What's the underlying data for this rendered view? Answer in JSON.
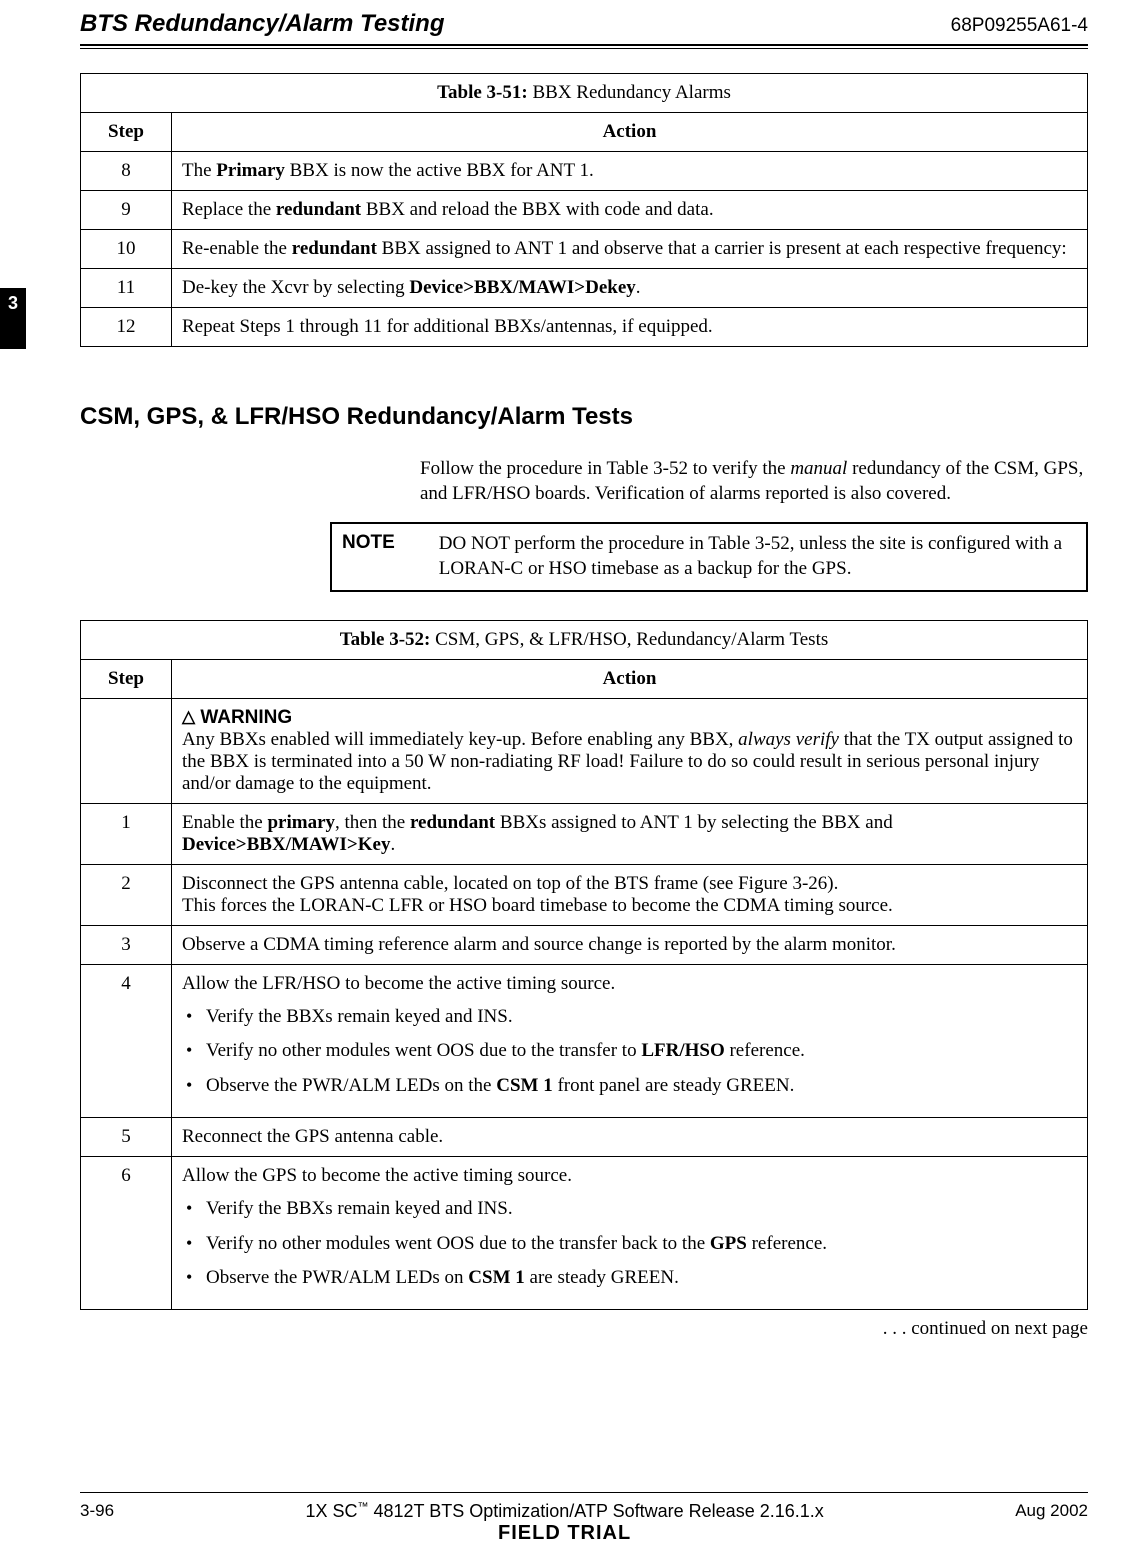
{
  "header": {
    "title": "BTS Redundancy/Alarm Testing",
    "docnum": "68P09255A61-4"
  },
  "sideTab": "3",
  "table1": {
    "caption_prefix": "Table 3-51:",
    "caption_rest": " BBX Redundancy Alarms",
    "col_step": "Step",
    "col_action": "Action",
    "rows": {
      "r8": {
        "step": "8",
        "a1": "The ",
        "b1": "Primary",
        "a2": " BBX is now the active BBX for ANT 1."
      },
      "r9": {
        "step": "9",
        "a1": "Replace the ",
        "b1": "redundant",
        "a2": " BBX and reload the BBX with code and data."
      },
      "r10": {
        "step": "10",
        "a1": "Re-enable the ",
        "b1": "redundant",
        "a2": " BBX assigned to ANT 1 and observe that a carrier is present at each respective frequency:"
      },
      "r11": {
        "step": "11",
        "a1": "De-key the Xcvr by selecting ",
        "b1": "Device>BBX/MAWI>Dekey",
        "a2": "."
      },
      "r12": {
        "step": "12",
        "a1": "Repeat Steps 1 through 11 for additional BBXs/antennas, if equipped."
      }
    }
  },
  "section": {
    "heading": "CSM, GPS, & LFR/HSO Redundancy/Alarm Tests",
    "para_a": "Follow the procedure in Table 3-52 to verify the ",
    "para_i": "manual",
    "para_b": " redundancy of the CSM, GPS, and LFR/HSO boards. Verification of alarms reported is also covered.",
    "note_label": "NOTE",
    "note_text": "DO NOT perform the procedure in Table 3-52, unless the site is configured with a LORAN-C or HSO timebase as a backup for the GPS."
  },
  "table2": {
    "caption_prefix": "Table 3-52:",
    "caption_rest": " CSM, GPS, & LFR/HSO,  Redundancy/Alarm Tests",
    "col_step": "Step",
    "col_action": "Action",
    "warn": {
      "tri": "△",
      "label": " WARNING",
      "t1": "Any BBXs enabled will immediately key-up. Before enabling any BBX, ",
      "i1": "always verify",
      "t2": " that the TX output assigned to the BBX is terminated into a 50 W non-radiating RF load! Failure to do so could result in serious personal injury and/or damage to the equipment."
    },
    "r1": {
      "step": "1",
      "a": "Enable the ",
      "b1": "primary",
      "c": ", then the ",
      "b2": "redundant",
      "d": " BBXs assigned to ANT 1 by selecting the BBX and ",
      "b3": "Device>BBX/MAWI>Key",
      "e": "."
    },
    "r2": {
      "step": "2",
      "l1": "Disconnect the GPS antenna cable, located on top of the BTS frame (see Figure 3-26).",
      "l2": "This forces the LORAN-C LFR or HSO board timebase to become the CDMA timing source."
    },
    "r3": {
      "step": "3",
      "a": "Observe a CDMA timing reference alarm and source change is reported by the alarm monitor."
    },
    "r4": {
      "step": "4",
      "lead": "Allow the LFR/HSO to become the active timing source.",
      "b1": "Verify the BBXs remain keyed and INS.",
      "b2a": "Verify no other modules went OOS due to the transfer to ",
      "b2b": "LFR/HSO",
      "b2c": " reference.",
      "b3a": "Observe the PWR/ALM LEDs on the ",
      "b3b": "CSM 1",
      "b3c": " front panel are steady GREEN."
    },
    "r5": {
      "step": "5",
      "a": "Reconnect the GPS antenna cable."
    },
    "r6": {
      "step": "6",
      "lead": "Allow the GPS to become the active timing source.",
      "b1": "Verify the BBXs remain keyed and INS.",
      "b2a": "Verify no other modules went OOS due to the transfer back to the ",
      "b2b": "GPS",
      "b2c": " reference.",
      "b3a": "Observe the PWR/ALM LEDs on ",
      "b3b": "CSM 1",
      "b3c": " are steady GREEN."
    }
  },
  "continued": " . . . continued on next page",
  "footer": {
    "page": "3-96",
    "center_a": "1X SC",
    "center_tm": "™",
    "center_b": " 4812T BTS Optimization/ATP Software Release 2.16.1.x",
    "center_line2": "FIELD TRIAL",
    "date": "Aug 2002"
  }
}
